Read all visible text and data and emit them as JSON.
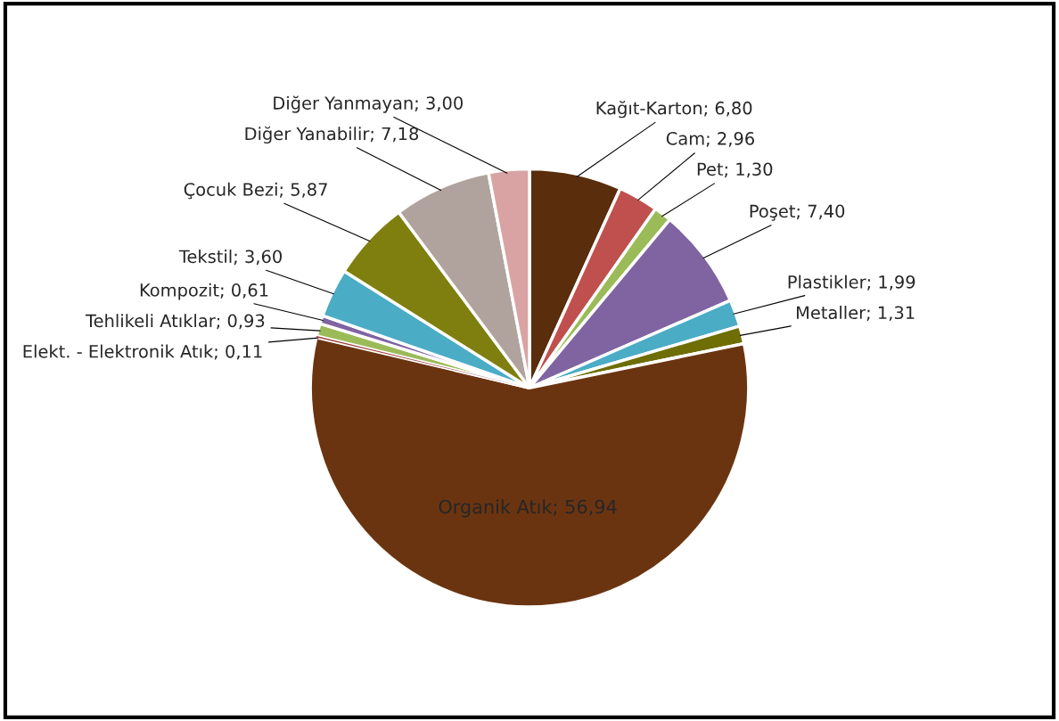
{
  "chart_data": {
    "type": "pie",
    "categories": [
      "Kağıt-Karton",
      "Cam",
      "Pet",
      "Poşet",
      "Plastikler",
      "Metaller",
      "Organik Atık",
      "Elekt. - Elektronik Atık",
      "Tehlikeli Atıklar",
      "Kompozit",
      "Tekstil",
      "Çocuk Bezi",
      "Diğer Yanabilir",
      "Diğer Yanmayan"
    ],
    "values": [
      6.8,
      2.96,
      1.3,
      7.4,
      1.99,
      1.31,
      56.94,
      0.11,
      0.93,
      0.61,
      3.6,
      5.87,
      7.18,
      3.0
    ],
    "colors": [
      "#5a2d0c",
      "#c0504d",
      "#9bbb59",
      "#8064a2",
      "#4bacc6",
      "#6e6e05",
      "#6b3410",
      "#a0403a",
      "#9bbb59",
      "#8064a2",
      "#4bacc6",
      "#7f7f10",
      "#b0a39e",
      "#d9a3a3"
    ],
    "value_labels": [
      "6,80",
      "2,96",
      "1,30",
      "7,40",
      "1,99",
      "1,31",
      "56,94",
      "0,11",
      "0,93",
      "0,61",
      "3,60",
      "5,87",
      "7,18",
      "3,00"
    ],
    "legend": false
  }
}
